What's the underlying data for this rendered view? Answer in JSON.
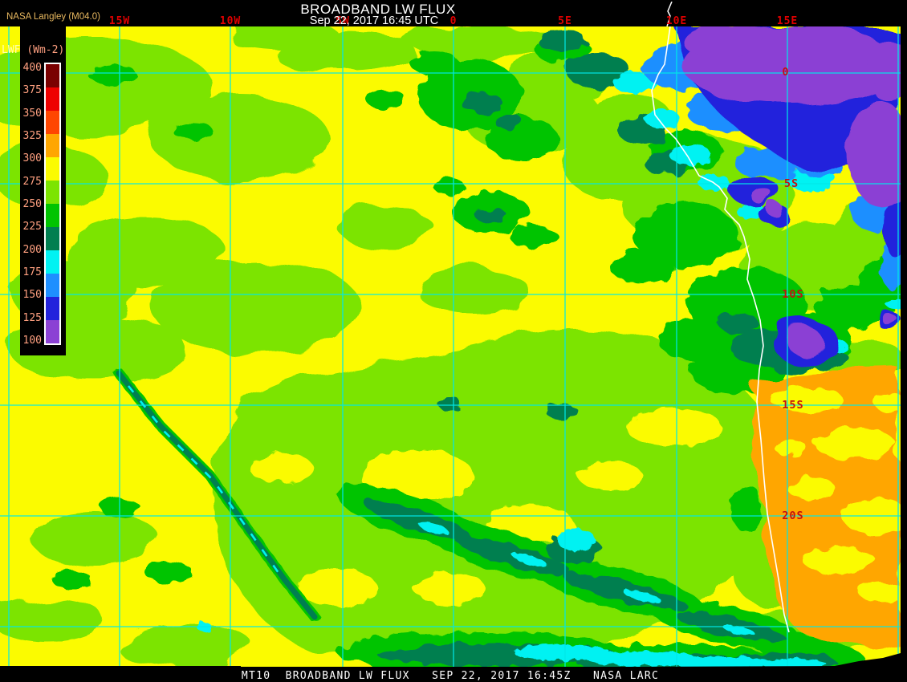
{
  "header": {
    "title": "BROADBAND LW FLUX",
    "datetime": "Sep 22, 2017 16:45 UTC",
    "source": "NASA Langley (M04.0)"
  },
  "legend": {
    "title_prefix": "LWF",
    "title_units": "(Wm-2)",
    "tick_labels": [
      "400",
      "375",
      "350",
      "325",
      "300",
      "275",
      "250",
      "225",
      "200",
      "175",
      "150",
      "125",
      "100"
    ],
    "swatch_colors_top_to_bottom": [
      "#7A0000",
      "#EE0000",
      "#FF4600",
      "#FFA600",
      "#FBFB00",
      "#7CE400",
      "#00C400",
      "#007F50",
      "#00F2F2",
      "#1E8FFF",
      "#2222DC",
      "#8B41D4"
    ],
    "label_color": "#FFA080"
  },
  "grid": {
    "line_color": "#00E8E8",
    "lon_label_color": "#E00000",
    "lat_label_color": "#C41010",
    "lon_labels": [
      {
        "text": "15W"
      },
      {
        "text": "10W"
      },
      {
        "text": "5W"
      },
      {
        "text": "0"
      },
      {
        "text": "5E"
      },
      {
        "text": "10E"
      },
      {
        "text": "15E"
      }
    ],
    "lat_labels": [
      {
        "text": "0"
      },
      {
        "text": "5S"
      },
      {
        "text": "10S"
      },
      {
        "text": "15S"
      },
      {
        "text": "20S"
      }
    ]
  },
  "map": {
    "coastline_color": "#FFFFFF",
    "background_flux_color": "#FBFB00",
    "palette": {
      "yellow_275_300": "#FBFB00",
      "chartreuse_250_275": "#7CE400",
      "green_225_250": "#00C400",
      "dark_green_200_225": "#007F50",
      "cyan_175_200": "#00F2F2",
      "light_blue_150_175": "#1E8FFF",
      "blue_125_150": "#2222DC",
      "purple_100_125": "#8B41D4",
      "orange_300_325": "#FFA600"
    }
  },
  "footer": {
    "text": "MT10  BROADBAND LW FLUX   SEP 22, 2017 16:45Z   NASA LARC"
  }
}
